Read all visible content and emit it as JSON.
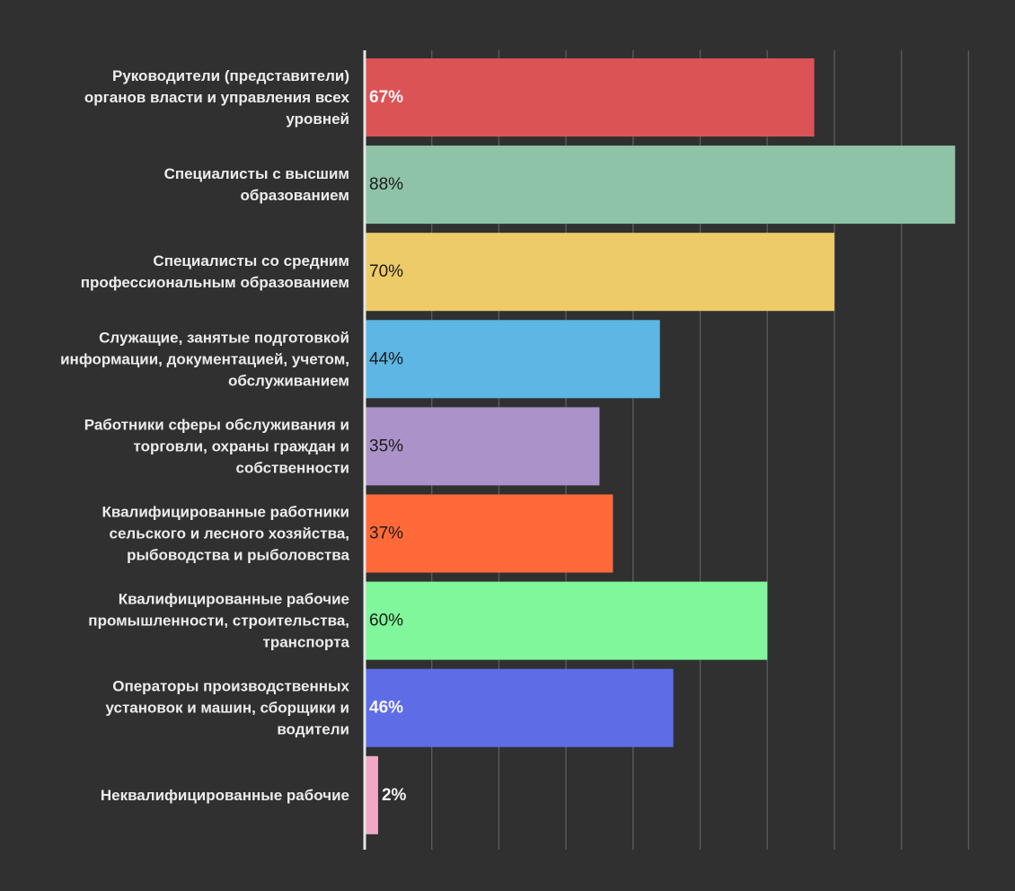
{
  "chart_data": {
    "type": "bar",
    "orientation": "horizontal",
    "title": "",
    "xlabel": "",
    "ylabel": "",
    "xlim": [
      0,
      90
    ],
    "grid": true,
    "background": "#303030",
    "categories": [
      [
        "Руководители (представители)",
        "органов власти и управления всех",
        "уровней"
      ],
      [
        "Специалисты с высшим",
        "образованием"
      ],
      [
        "Специалисты со средним",
        "профессиональным образованием"
      ],
      [
        "Служащие, занятые подготовкой",
        "информации, документацией, учетом,",
        "обслуживанием"
      ],
      [
        "Работники сферы обслуживания и",
        "торговли, охраны граждан и",
        "собственности"
      ],
      [
        "Квалифицированные работники",
        "сельского и лесного хозяйства,",
        "рыбоводства и рыболовства"
      ],
      [
        "Квалифицированные рабочие",
        "промышленности, строительства,",
        "транспорта"
      ],
      [
        "Операторы производственных",
        "установок и машин, сборщики и",
        "водители"
      ],
      [
        "Неквалифицированные рабочие"
      ]
    ],
    "values": [
      67,
      88,
      70,
      44,
      35,
      37,
      60,
      46,
      2
    ],
    "value_labels": [
      "67%",
      "88%",
      "70%",
      "44%",
      "35%",
      "37%",
      "60%",
      "46%",
      "2%"
    ],
    "colors": [
      "#dc5355",
      "#8ec3a7",
      "#eecb69",
      "#5db6e3",
      "#ab92c8",
      "#ff6a38",
      "#80f79a",
      "#5e6de6",
      "#f0a8c6"
    ],
    "label_colors": [
      "#f4f4f4",
      "#1b1b1b",
      "#1b1b1b",
      "#1b1b1b",
      "#1b1b1b",
      "#1b1b1b",
      "#1b1b1b",
      "#f4f4f4",
      "#f4f4f4"
    ],
    "category_label_color": "#ececec",
    "axis_color": "#e6e6e6",
    "grid_color": "#5a5a5a"
  }
}
